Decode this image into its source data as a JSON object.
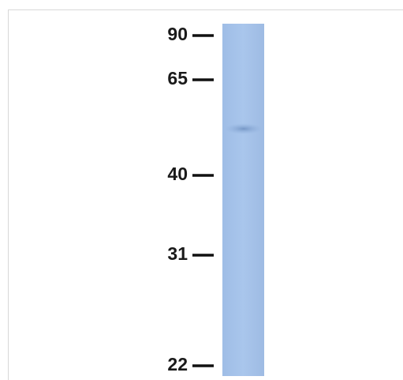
{
  "markers": [
    "90",
    "65",
    "40",
    "31",
    "22"
  ]
}
